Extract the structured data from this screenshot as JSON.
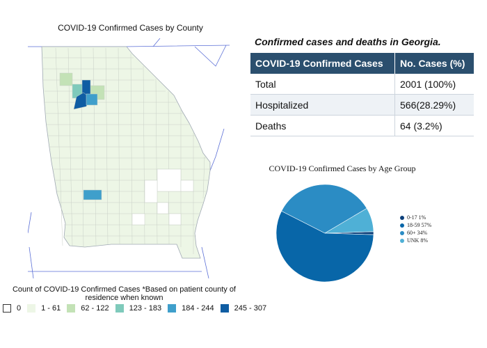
{
  "map": {
    "title": "COVID-19 Confirmed Cases by County",
    "legend_title": "Count of COVID-19 Confirmed Cases *Based on patient county of residence when known",
    "legend": [
      {
        "label": "0",
        "color": "#ffffff"
      },
      {
        "label": "1 - 61",
        "color": "#edf6e6"
      },
      {
        "label": "62 - 122",
        "color": "#c3e2b6"
      },
      {
        "label": "123 - 183",
        "color": "#7fcabb"
      },
      {
        "label": "184 - 244",
        "color": "#3f9fcb"
      },
      {
        "label": "245 - 307",
        "color": "#0f5da3"
      }
    ]
  },
  "table": {
    "caption": "Confirmed cases and deaths in Georgia.",
    "headers": [
      "COVID-19 Confirmed Cases",
      "No. Cases (%)"
    ],
    "rows": [
      [
        "Total",
        "2001 (100%)"
      ],
      [
        "Hospitalized",
        "566(28.29%)"
      ],
      [
        "Deaths",
        "64 (3.2%)"
      ]
    ]
  },
  "chart_data": {
    "type": "pie",
    "title": "COVID-19 Confirmed Cases by Age Group",
    "slices": [
      {
        "label": "0-17 1%",
        "value": 1,
        "color": "#0b3f7a"
      },
      {
        "label": "18-59 57%",
        "value": 57,
        "color": "#0866a8"
      },
      {
        "label": "60+ 34%",
        "value": 34,
        "color": "#2b8cc4"
      },
      {
        "label": "UNK 8%",
        "value": 8,
        "color": "#4fb0d6"
      }
    ]
  }
}
